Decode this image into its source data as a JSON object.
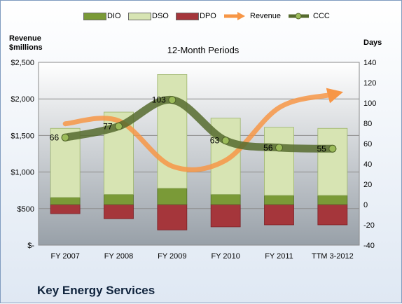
{
  "company_name": "Key Energy Services",
  "chart_data": {
    "type": "bar",
    "title": "12-Month Periods",
    "y_left_label": [
      "Revenue",
      "$millions"
    ],
    "y_right_label": "Days",
    "categories": [
      "FY 2007",
      "FY 2008",
      "FY 2009",
      "FY 2010",
      "FY 2011",
      "TTM 3-2012"
    ],
    "y_left_lim": [
      0,
      2500
    ],
    "y_left_ticks": [
      "$-",
      "$500",
      "$1,000",
      "$1,500",
      "$2,000",
      "$2,500"
    ],
    "y_right_lim": [
      -40,
      140
    ],
    "y_right_ticks": [
      "-40",
      "-20",
      "0",
      "20",
      "40",
      "60",
      "80",
      "100",
      "120",
      "140"
    ],
    "grid": true,
    "legend_position": "top",
    "legend": [
      "DIO",
      "DSO",
      "DPO",
      "Revenue",
      "CCC"
    ],
    "stacked_days_series": [
      {
        "name": "DPO",
        "color": "#a5363b",
        "values": [
          -9,
          -14,
          -25,
          -22,
          -20,
          -20
        ]
      },
      {
        "name": "DIO",
        "color": "#7a9a37",
        "values": [
          7,
          10,
          16,
          10,
          9,
          9
        ]
      },
      {
        "name": "DSO",
        "color": "#d7e4b3",
        "values": [
          68,
          81,
          112,
          75,
          67,
          66
        ]
      }
    ],
    "line_series": [
      {
        "name": "Revenue",
        "axis": "left",
        "color": "#f79646",
        "style": "smooth-arrow",
        "values": [
          1660,
          1700,
          1080,
          1160,
          1880,
          2060
        ]
      },
      {
        "name": "CCC",
        "axis": "right",
        "color": "#566b2e",
        "style": "smooth-thick",
        "values": [
          66,
          77,
          103,
          63,
          56,
          55
        ],
        "labels": [
          "66",
          "77",
          "103",
          "63",
          "56",
          "55"
        ]
      }
    ]
  }
}
